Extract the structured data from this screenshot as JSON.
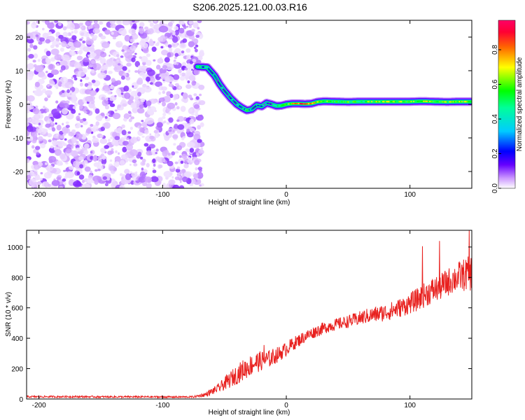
{
  "figure_title": "S206.2025.121.00.03.R16",
  "chart_data": [
    {
      "type": "heatmap",
      "title": "",
      "xlabel": "Height of straight line (km)",
      "ylabel": "Frequency (Hz)",
      "xlim": [
        -210,
        150
      ],
      "ylim": [
        -25,
        25
      ],
      "xticks": [
        -200,
        -100,
        0,
        100
      ],
      "yticks": [
        -20,
        -10,
        0,
        10,
        20
      ],
      "colorbar": {
        "label": "Normalized spectral amplitude",
        "range": [
          0,
          0.97
        ],
        "ticks": [
          0.0,
          0.2,
          0.4,
          0.6,
          0.8
        ],
        "colormap": [
          "#ffffff",
          "#cc99ff",
          "#6600ff",
          "#0000ff",
          "#00ccff",
          "#00ff99",
          "#00ff00",
          "#ffff00",
          "#ff6600",
          "#ff0033",
          "#ff0066"
        ]
      },
      "noise_region_x": [
        -210,
        -68
      ],
      "ridge": [
        {
          "x": -72,
          "f": 11.2,
          "a": 0.5
        },
        {
          "x": -64,
          "f": 11.0,
          "a": 0.3
        },
        {
          "x": -58,
          "f": 8.5,
          "a": 0.3
        },
        {
          "x": -54,
          "f": 6.0,
          "a": 0.3
        },
        {
          "x": -50,
          "f": 4.0,
          "a": 0.3
        },
        {
          "x": -45,
          "f": 1.8,
          "a": 0.3
        },
        {
          "x": -40,
          "f": 0.0,
          "a": 0.35
        },
        {
          "x": -36,
          "f": -1.0,
          "a": 0.4
        },
        {
          "x": -32,
          "f": -1.8,
          "a": 0.5
        },
        {
          "x": -28,
          "f": -1.5,
          "a": 0.3
        },
        {
          "x": -24,
          "f": -0.3,
          "a": 0.3
        },
        {
          "x": -20,
          "f": -0.6,
          "a": 0.3
        },
        {
          "x": -16,
          "f": 0.4,
          "a": 0.3
        },
        {
          "x": -12,
          "f": 0.0,
          "a": 0.3
        },
        {
          "x": -8,
          "f": -0.5,
          "a": 0.5
        },
        {
          "x": -4,
          "f": -0.4,
          "a": 0.5
        },
        {
          "x": 0,
          "f": 0.0,
          "a": 0.6
        },
        {
          "x": 5,
          "f": 0.2,
          "a": 0.75
        },
        {
          "x": 10,
          "f": 0.2,
          "a": 0.8
        },
        {
          "x": 15,
          "f": 0.1,
          "a": 0.85
        },
        {
          "x": 20,
          "f": 0.2,
          "a": 0.75
        },
        {
          "x": 25,
          "f": 0.7,
          "a": 0.6
        },
        {
          "x": 30,
          "f": 0.9,
          "a": 0.6
        },
        {
          "x": 40,
          "f": 0.8,
          "a": 0.55
        },
        {
          "x": 50,
          "f": 0.7,
          "a": 0.55
        },
        {
          "x": 60,
          "f": 0.8,
          "a": 0.55
        },
        {
          "x": 70,
          "f": 0.8,
          "a": 0.6
        },
        {
          "x": 80,
          "f": 0.8,
          "a": 0.6
        },
        {
          "x": 90,
          "f": 0.8,
          "a": 0.6
        },
        {
          "x": 100,
          "f": 0.8,
          "a": 0.6
        },
        {
          "x": 110,
          "f": 0.9,
          "a": 0.65
        },
        {
          "x": 120,
          "f": 0.8,
          "a": 0.6
        },
        {
          "x": 130,
          "f": 0.7,
          "a": 0.6
        },
        {
          "x": 140,
          "f": 0.8,
          "a": 0.6
        },
        {
          "x": 150,
          "f": 0.8,
          "a": 0.65
        }
      ]
    },
    {
      "type": "line",
      "title": "",
      "xlabel": "Height of straight line (km)",
      "ylabel": "SNR (10 * v/v)",
      "xlim": [
        -210,
        150
      ],
      "ylim": [
        0,
        1110
      ],
      "xticks": [
        -200,
        -100,
        0,
        100
      ],
      "yticks": [
        0,
        200,
        400,
        600,
        800,
        1000
      ],
      "series": [
        {
          "color": "#e8201e",
          "x": [
            -210,
            -190,
            -170,
            -150,
            -130,
            -110,
            -90,
            -75,
            -65,
            -55,
            -45,
            -35,
            -25,
            -15,
            -5,
            5,
            15,
            25,
            35,
            45,
            55,
            65,
            75,
            85,
            95,
            105,
            115,
            125,
            135,
            145,
            150
          ],
          "mean": [
            15,
            15,
            15,
            14,
            14,
            14,
            13,
            14,
            30,
            70,
            130,
            190,
            240,
            260,
            300,
            360,
            410,
            450,
            480,
            500,
            520,
            545,
            560,
            580,
            610,
            650,
            700,
            740,
            790,
            820,
            830
          ],
          "noise": [
            6,
            6,
            6,
            6,
            6,
            6,
            6,
            6,
            15,
            30,
            55,
            70,
            70,
            60,
            50,
            45,
            40,
            40,
            40,
            40,
            45,
            50,
            55,
            60,
            65,
            75,
            85,
            90,
            95,
            110,
            120
          ],
          "peak_points": [
            [
              -18,
              355
            ],
            [
              110,
              1005
            ],
            [
              124,
              1040
            ],
            [
              148,
              1110
            ]
          ]
        }
      ]
    }
  ]
}
